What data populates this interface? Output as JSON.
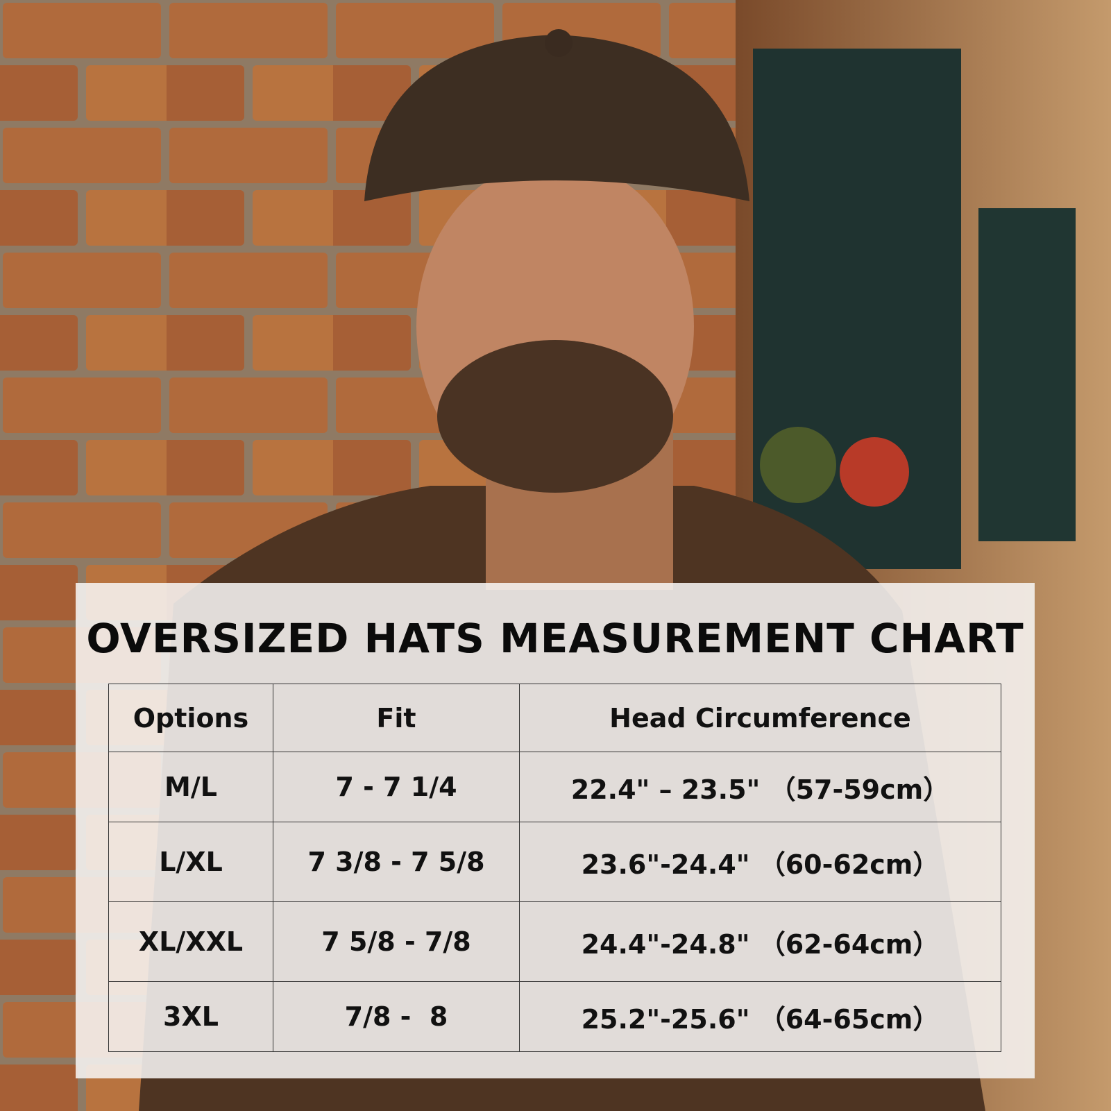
{
  "header": {
    "title": "OVERSIZED HATS MEASUREMENT CHART"
  },
  "table": {
    "headers": [
      "Options",
      "Fit",
      "Head Circumference"
    ],
    "rows": [
      [
        "M/L",
        "7 - 7 1/4",
        "22.4\" – 23.5\" （57-59cm）"
      ],
      [
        "L/XL",
        "7 3/8 - 7 5/8",
        "23.6\"-24.4\" （60-62cm）"
      ],
      [
        "XL/XXL",
        "7 5/8 - 7/8",
        "24.4\"-24.8\" （62-64cm）"
      ],
      [
        "3XL",
        "7/8 -  8",
        "25.2\"-25.6\" （64-65cm）"
      ]
    ]
  }
}
